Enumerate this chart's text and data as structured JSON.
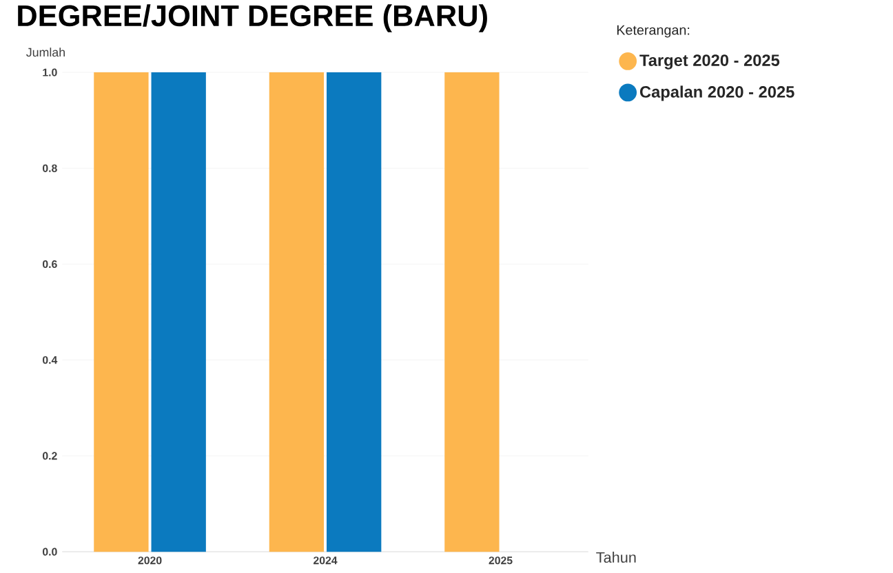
{
  "chart_data": {
    "type": "bar",
    "title": "DEGREE/JOINT DEGREE (BARU)",
    "xlabel": "Tahun",
    "ylabel": "Jumlah",
    "legend_title": "Keterangan:",
    "categories": [
      "2020",
      "2024",
      "2025"
    ],
    "series": [
      {
        "name": "Target 2020 - 2025",
        "color": "#fdb64e",
        "values": [
          1,
          1,
          1
        ]
      },
      {
        "name": "Capalan 2020 - 2025",
        "color": "#0b7abf",
        "values": [
          1,
          1,
          null
        ]
      }
    ],
    "ylim": [
      0,
      1
    ],
    "yticks": [
      {
        "value": 0,
        "label": "0.0"
      },
      0.2,
      0.4,
      0.6,
      0.8,
      {
        "value": 1,
        "label": "1.0"
      }
    ],
    "grid": "y",
    "legend": "top right"
  }
}
